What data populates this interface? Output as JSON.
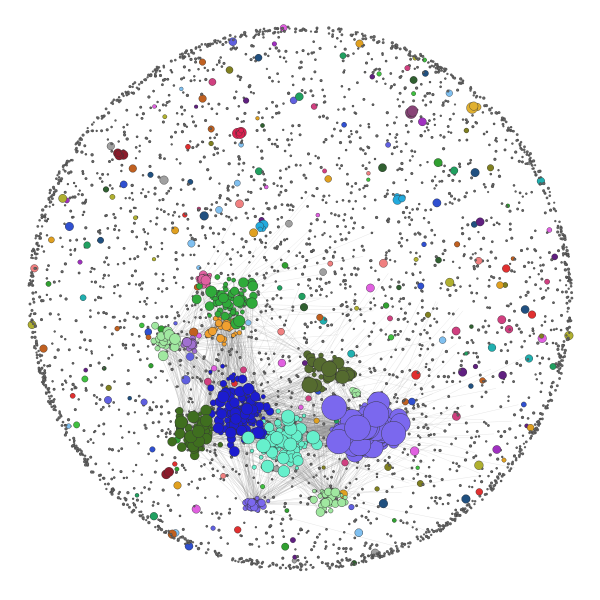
{
  "graph": {
    "background": "#ffffff",
    "node_stroke": "#333333",
    "edge_color": "#888888",
    "dust_color": "#666666",
    "clusters": [
      {
        "name": "lavender",
        "color": "#7b68ee"
      },
      {
        "name": "navy-blue",
        "color": "#1c1ccf"
      },
      {
        "name": "aquamarine",
        "color": "#66f0cc"
      },
      {
        "name": "olive-green",
        "color": "#3f6f1f"
      },
      {
        "name": "green",
        "color": "#2faa3a"
      },
      {
        "name": "orange",
        "color": "#f0a030"
      },
      {
        "name": "pink",
        "color": "#e060a0"
      },
      {
        "name": "light-purple",
        "color": "#a070d0"
      },
      {
        "name": "light-green",
        "color": "#a0e8a0"
      },
      {
        "name": "dark-olive",
        "color": "#556b2f"
      },
      {
        "name": "cyan",
        "color": "#22aadd"
      },
      {
        "name": "crimson",
        "color": "#dc2050"
      },
      {
        "name": "maroon",
        "color": "#8b1a2a"
      },
      {
        "name": "gold",
        "color": "#e0b030"
      },
      {
        "name": "plum",
        "color": "#884477"
      }
    ],
    "palette": [
      "#e03030",
      "#30a030",
      "#3050d0",
      "#e0a020",
      "#a030c0",
      "#20b0b0",
      "#d04080",
      "#808020",
      "#40c040",
      "#c06020",
      "#6060e0",
      "#20a060",
      "#b0b030",
      "#e060e0",
      "#306030",
      "#a0a0a0",
      "#205080",
      "#f08080",
      "#80c0f0",
      "#602080"
    ]
  }
}
